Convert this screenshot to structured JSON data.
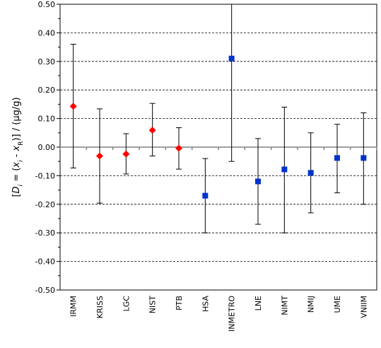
{
  "chart_data": {
    "type": "scatter",
    "ylabel": {
      "prefix": "[",
      "D": "D",
      "D_sub": "i",
      "mid": " = (",
      "x1": "x",
      "x1_sub": "i",
      "minus": " - ",
      "x2": "x",
      "x2_sub": "R",
      "suffix": ")] / (µg/g)"
    },
    "ylim": [
      -0.5,
      0.5
    ],
    "yticks": [
      "-0.50",
      "-0.40",
      "-0.30",
      "-0.20",
      "-0.10",
      "0.00",
      "0.10",
      "0.20",
      "0.30",
      "0.40",
      "0.50"
    ],
    "grid": "horizontal dashed",
    "categories": [
      "IRMM",
      "KRISS",
      "LGC",
      "NIST",
      "PTB",
      "HSA",
      "INMETRO",
      "LNE",
      "NIMT",
      "NMIJ",
      "UME",
      "VNIIM"
    ],
    "series": [
      {
        "marker": "diamond",
        "color": "#ff0000",
        "points": [
          {
            "x": "IRMM",
            "y": 0.143,
            "low": -0.073,
            "high": 0.36
          },
          {
            "x": "KRISS",
            "y": -0.031,
            "low": -0.196,
            "high": 0.134
          },
          {
            "x": "LGC",
            "y": -0.024,
            "low": -0.094,
            "high": 0.047
          },
          {
            "x": "NIST",
            "y": 0.059,
            "low": -0.031,
            "high": 0.153
          },
          {
            "x": "PTB",
            "y": -0.004,
            "low": -0.077,
            "high": 0.068
          }
        ]
      },
      {
        "marker": "square",
        "color": "#0033cc",
        "points": [
          {
            "x": "HSA",
            "y": -0.17,
            "low": -0.3,
            "high": -0.04
          },
          {
            "x": "INMETRO",
            "y": 0.31,
            "low": -0.05,
            "high": 0.5
          },
          {
            "x": "LNE",
            "y": -0.12,
            "low": -0.27,
            "high": 0.03
          },
          {
            "x": "NIMT",
            "y": -0.078,
            "low": -0.3,
            "high": 0.14
          },
          {
            "x": "NMIJ",
            "y": -0.09,
            "low": -0.23,
            "high": 0.05
          },
          {
            "x": "UME",
            "y": -0.038,
            "low": -0.16,
            "high": 0.08
          },
          {
            "x": "VNIIM",
            "y": -0.038,
            "low": -0.2,
            "high": 0.12
          }
        ]
      }
    ]
  }
}
